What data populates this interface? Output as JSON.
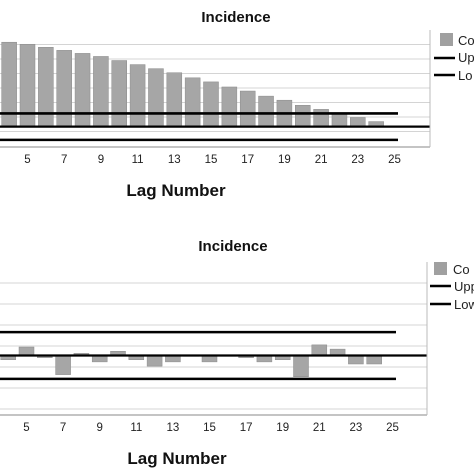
{
  "chart_data": [
    {
      "type": "bar",
      "title": "Incidence",
      "xlabel": "Lag Number",
      "x_tick_labels": [
        "5",
        "7",
        "9",
        "11",
        "13",
        "15",
        "17",
        "19",
        "21",
        "23",
        "25"
      ],
      "lags": [
        3,
        4,
        5,
        6,
        7,
        8,
        9,
        10,
        11,
        12,
        13,
        14,
        15,
        16,
        17,
        18,
        19,
        20,
        21,
        22,
        23,
        24
      ],
      "series": [
        {
          "name": "Co",
          "kind": "bar",
          "values": [
            0.85,
            0.83,
            0.81,
            0.78,
            0.75,
            0.72,
            0.69,
            0.65,
            0.61,
            0.57,
            0.53,
            0.48,
            0.44,
            0.39,
            0.35,
            0.3,
            0.26,
            0.21,
            0.17,
            0.13,
            0.09,
            0.05
          ]
        },
        {
          "name": "Upp",
          "kind": "line",
          "value": 0.13
        },
        {
          "name": "Lo",
          "kind": "line",
          "value": -0.13
        }
      ],
      "ylim": [
        -0.2,
        0.95
      ],
      "grid": true,
      "legend_placement": "right"
    },
    {
      "type": "bar",
      "title": "Incidence",
      "xlabel": "Lag Number",
      "x_tick_labels": [
        "5",
        "7",
        "9",
        "11",
        "13",
        "15",
        "17",
        "19",
        "21",
        "23",
        "25"
      ],
      "lags": [
        3,
        4,
        5,
        6,
        7,
        8,
        9,
        10,
        11,
        12,
        13,
        14,
        15,
        16,
        17,
        18,
        19,
        20,
        21,
        22,
        23,
        24
      ],
      "series": [
        {
          "name": "Co",
          "kind": "bar",
          "values": [
            -0.03,
            -0.02,
            0.04,
            -0.01,
            -0.09,
            0.01,
            -0.03,
            0.02,
            -0.02,
            -0.05,
            -0.03,
            0.0,
            -0.03,
            0.0,
            -0.01,
            -0.03,
            -0.02,
            -0.1,
            0.05,
            0.03,
            -0.04,
            -0.04
          ]
        },
        {
          "name": "Upp",
          "kind": "line",
          "value": 0.11
        },
        {
          "name": "Low",
          "kind": "line",
          "value": -0.11
        }
      ],
      "ylim": [
        -0.28,
        0.44
      ],
      "grid": true,
      "legend_placement": "right"
    }
  ]
}
